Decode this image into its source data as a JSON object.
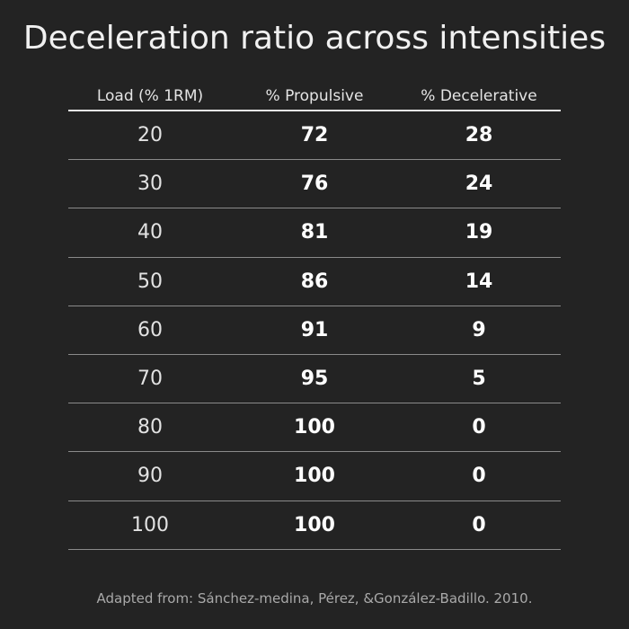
{
  "chart_data": {
    "type": "table",
    "title": "Deceleration ratio across intensities",
    "columns": [
      "Load (% 1RM)",
      "% Propulsive",
      "% Decelerative"
    ],
    "rows": [
      [
        "20",
        "72",
        "28"
      ],
      [
        "30",
        "76",
        "24"
      ],
      [
        "40",
        "81",
        "19"
      ],
      [
        "50",
        "86",
        "14"
      ],
      [
        "60",
        "91",
        "9"
      ],
      [
        "70",
        "95",
        "5"
      ],
      [
        "80",
        "100",
        "0"
      ],
      [
        "90",
        "100",
        "0"
      ],
      [
        "100",
        "100",
        "0"
      ]
    ],
    "source": "Adapted from: Sánchez-medina, Pérez, &González-Badillo. 2010."
  },
  "colors": {
    "background": "#232323",
    "text": "#ececec",
    "header_rule": "#e8e8e8",
    "row_rule": "#8a8a8a",
    "source_text": "#a9a9a9"
  }
}
